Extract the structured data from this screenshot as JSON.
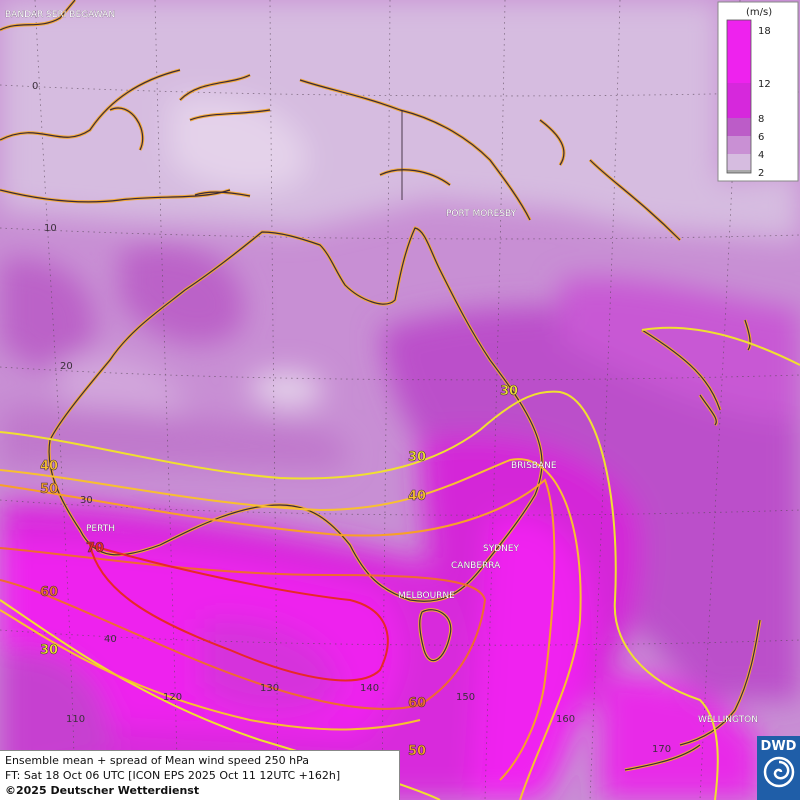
{
  "legend": {
    "unit": "(m/s)",
    "levels": [
      {
        "label": "18",
        "color": "#ee22ee"
      },
      {
        "label": "12",
        "color": "#d628dc"
      },
      {
        "label": "8",
        "color": "#bc5cc8"
      },
      {
        "label": "6",
        "color": "#c990d4"
      },
      {
        "label": "4",
        "color": "#d6bce0"
      },
      {
        "label": "2",
        "color": "#aaaaaa"
      }
    ]
  },
  "cities": [
    "BANDAR SERI BEGAWAN",
    "PORT MORESBY",
    "BRISBANE",
    "PERTH",
    "SYDNEY",
    "CANBERRA",
    "MELBOURNE",
    "WELLINGTON"
  ],
  "latitudes": [
    "0",
    "10",
    "20",
    "30",
    "40"
  ],
  "longitudes": [
    "110",
    "120",
    "130",
    "140",
    "150",
    "160",
    "170"
  ],
  "contour_labels": [
    "30",
    "30",
    "30",
    "40",
    "40",
    "50",
    "50",
    "60",
    "60",
    "70"
  ],
  "contour_colors": {
    "30": "#f0e030",
    "40": "#f8c030",
    "50": "#f8a028",
    "60": "#f06a30",
    "70": "#e82828"
  },
  "caption": {
    "line1": "Ensemble mean + spread of Mean wind speed 250 hPa",
    "line2": "FT: Sat 18 Oct 06 UTC [ICON EPS 2025 Oct 11 12UTC +162h]",
    "line3": "©2025 Deutscher Wetterdienst"
  },
  "logo": {
    "text": "DWD"
  }
}
